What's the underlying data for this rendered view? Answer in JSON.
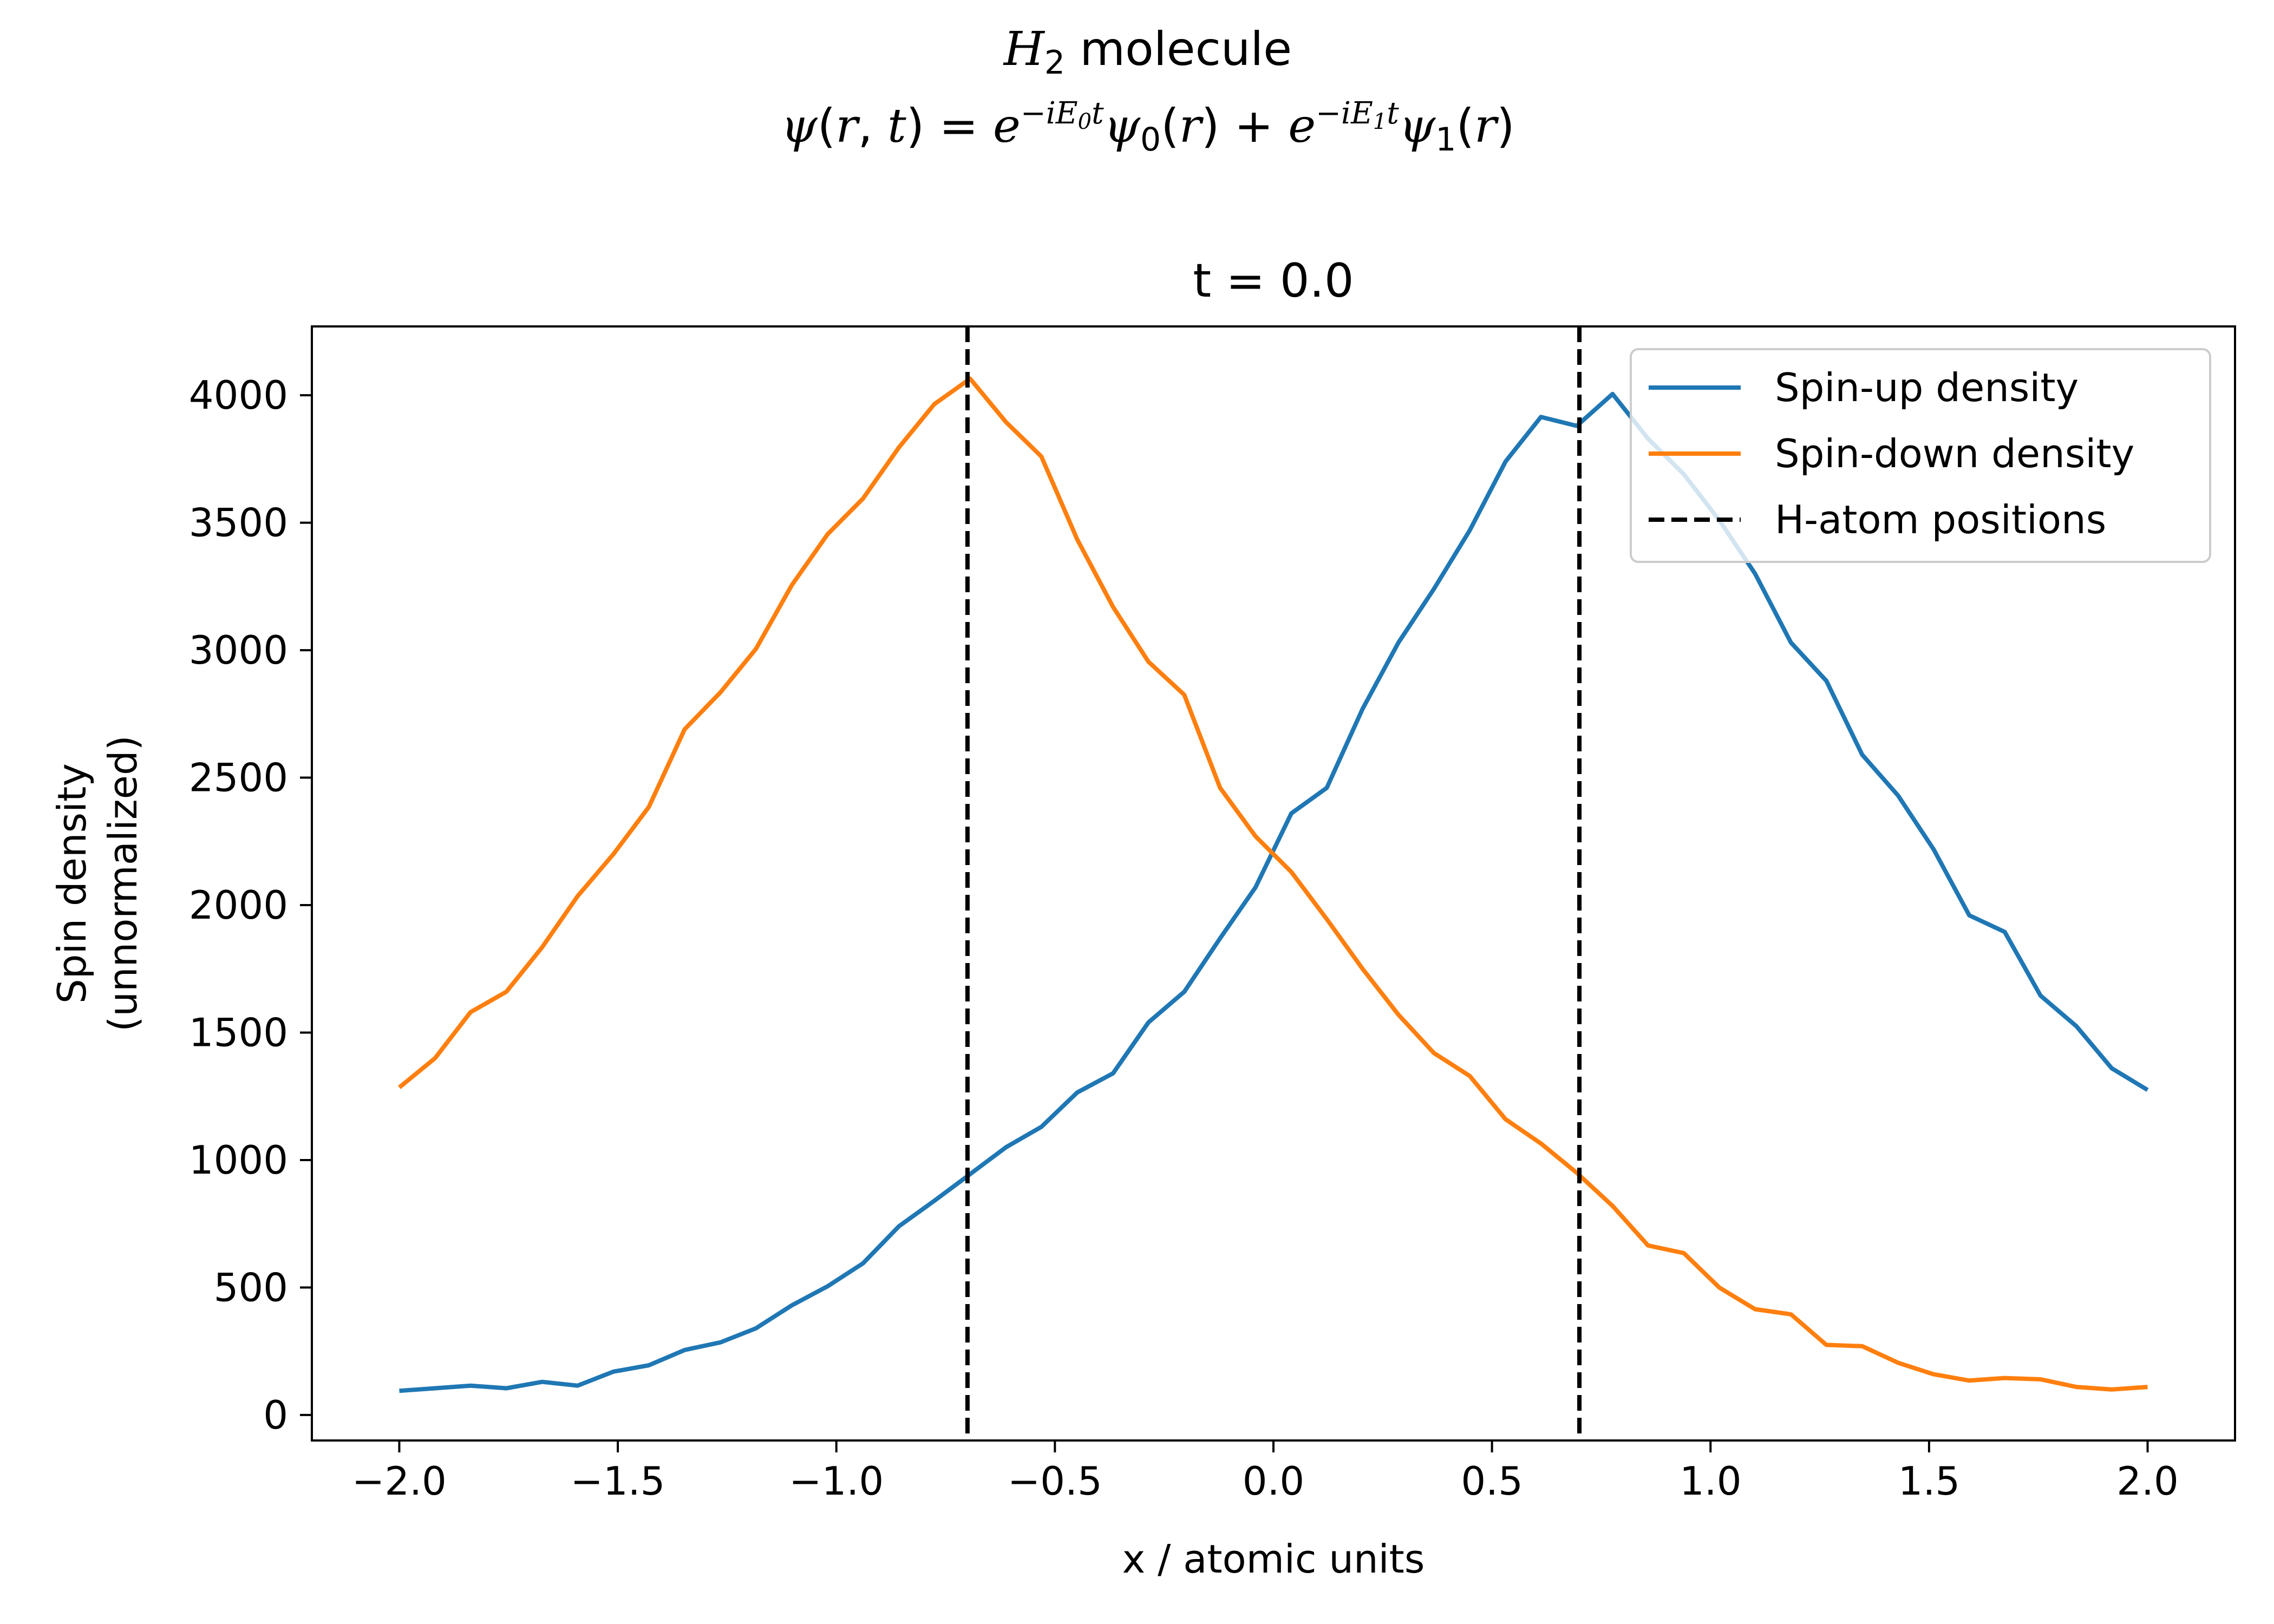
{
  "figure": {
    "suptitle_line1_italic": "H",
    "suptitle_line1_sub": "2",
    "suptitle_line1_rest": " molecule",
    "suptitle_line2": "ψ(r,t) = e^{−iE₀t}ψ₀(r) + e^{−iE₁t}ψ₁(r)"
  },
  "chart_data": {
    "type": "line",
    "title": "t = 0.0",
    "xlabel": "x / atomic units",
    "ylabel": [
      "Spin density",
      "(unnormalized)"
    ],
    "xlim": [
      -2.2,
      2.2
    ],
    "ylim": [
      -100,
      4270
    ],
    "xticks": [
      -2.0,
      -1.5,
      -1.0,
      -0.5,
      0.0,
      0.5,
      1.0,
      1.5,
      2.0
    ],
    "xtick_labels": [
      "−2.0",
      "−1.5",
      "−1.0",
      "−0.5",
      "0.0",
      "0.5",
      "1.0",
      "1.5",
      "2.0"
    ],
    "yticks": [
      0,
      500,
      1000,
      1500,
      2000,
      2500,
      3000,
      3500,
      4000
    ],
    "ytick_labels": [
      "0",
      "500",
      "1000",
      "1500",
      "2000",
      "2500",
      "3000",
      "3500",
      "4000"
    ],
    "grid": false,
    "legend_position": "top-right",
    "x": [
      -2.0,
      -1.918,
      -1.837,
      -1.755,
      -1.673,
      -1.592,
      -1.51,
      -1.429,
      -1.347,
      -1.265,
      -1.184,
      -1.102,
      -1.02,
      -0.939,
      -0.857,
      -0.776,
      -0.694,
      -0.612,
      -0.531,
      -0.449,
      -0.367,
      -0.286,
      -0.204,
      -0.122,
      -0.041,
      0.041,
      0.122,
      0.204,
      0.286,
      0.367,
      0.449,
      0.531,
      0.612,
      0.694,
      0.776,
      0.857,
      0.939,
      1.02,
      1.102,
      1.184,
      1.265,
      1.347,
      1.429,
      1.51,
      1.592,
      1.673,
      1.755,
      1.837,
      1.918,
      2.0
    ],
    "series": [
      {
        "name": "Spin-up density",
        "color": "#1f77b4",
        "style": "solid",
        "values": [
          95,
          105,
          115,
          105,
          130,
          115,
          170,
          195,
          255,
          285,
          340,
          430,
          505,
          595,
          740,
          840,
          945,
          1050,
          1130,
          1265,
          1340,
          1540,
          1660,
          1870,
          2070,
          2360,
          2460,
          2770,
          3030,
          3240,
          3470,
          3740,
          3915,
          3880,
          4005,
          3830,
          3690,
          3510,
          3300,
          3030,
          2880,
          2590,
          2430,
          2220,
          1960,
          1895,
          1645,
          1525,
          1360,
          1275
        ]
      },
      {
        "name": "Spin-down density",
        "color": "#ff7f0e",
        "style": "solid",
        "values": [
          1285,
          1400,
          1580,
          1660,
          1835,
          2035,
          2200,
          2385,
          2690,
          2835,
          3005,
          3255,
          3455,
          3595,
          3795,
          3965,
          4065,
          3895,
          3760,
          3435,
          3170,
          2955,
          2825,
          2460,
          2270,
          2130,
          1945,
          1750,
          1570,
          1420,
          1330,
          1160,
          1065,
          950,
          820,
          665,
          635,
          500,
          415,
          395,
          275,
          270,
          205,
          160,
          135,
          145,
          140,
          110,
          100,
          110
        ]
      }
    ],
    "vlines": {
      "name": "H-atom positions",
      "color": "#000000",
      "style": "dashed",
      "x": [
        -0.7,
        0.7
      ]
    }
  }
}
